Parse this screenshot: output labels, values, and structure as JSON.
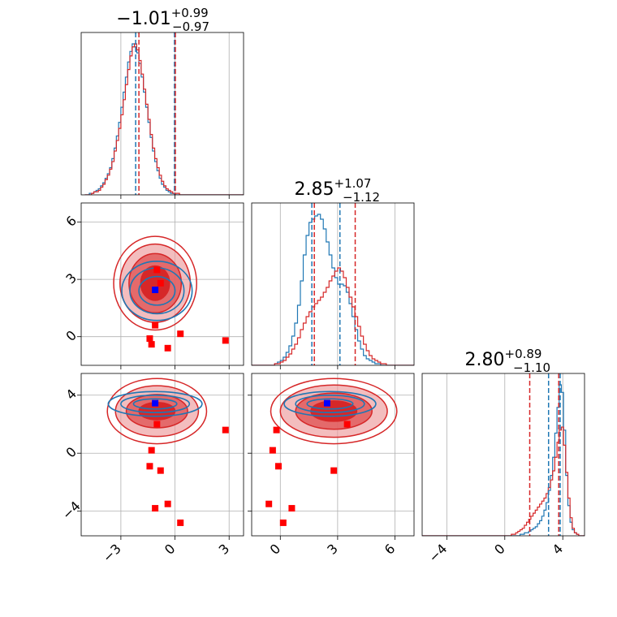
{
  "colors": {
    "red": "#d62728",
    "blue": "#1f77b4",
    "marker_red": "#ff0000",
    "marker_blue": "#0000ff",
    "grid": "#b0b0b0"
  },
  "chart_data": {
    "type": "corner",
    "parameters": 3,
    "grid": true,
    "series": [
      {
        "name": "",
        "color": "#1f77b4"
      },
      {
        "name": "",
        "color": "#d62728"
      }
    ],
    "titles": [
      {
        "main": "−1.01",
        "sup": "+0.99",
        "sub": "−0.97"
      },
      {
        "main": "2.85",
        "sup": "+1.07",
        "sub": "−1.12"
      },
      {
        "main": "2.80",
        "sup": "+0.89",
        "sub": "−1.10"
      }
    ],
    "ranges": [
      [
        -5.2,
        3.8
      ],
      [
        -1.5,
        7.0
      ],
      [
        -5.7,
        5.5
      ]
    ],
    "ticks": [
      {
        "values": [
          -3,
          0,
          3
        ],
        "labels": [
          "−3",
          "0",
          "3"
        ]
      },
      {
        "values": [
          0,
          3,
          6
        ],
        "labels": [
          "0",
          "3",
          "6"
        ]
      },
      {
        "values": [
          -4,
          0,
          4
        ],
        "labels": [
          "−4",
          "0",
          "4"
        ]
      }
    ],
    "quantiles": {
      "blue": [
        [
          -2.18,
          -0.03
        ],
        [
          1.65,
          3.12
        ],
        [
          3.02,
          3.82
        ]
      ],
      "red": [
        [
          -2.0,
          0.02
        ],
        [
          1.78,
          3.92
        ],
        [
          1.72,
          3.72
        ]
      ]
    },
    "histograms": [
      {
        "start": -5.0,
        "width": 0.125,
        "blue": [
          0,
          0,
          1,
          1,
          2,
          3,
          4,
          6,
          8,
          11,
          14,
          18,
          24,
          31,
          39,
          48,
          58,
          68,
          78,
          88,
          95,
          100,
          98,
          94,
          87,
          78,
          68,
          58,
          48,
          38,
          29,
          22,
          16,
          11,
          7,
          5,
          3,
          2,
          1,
          1,
          0,
          0,
          0,
          0,
          0,
          0,
          0,
          0,
          0,
          0,
          0,
          0,
          0,
          0,
          0,
          0,
          0,
          0,
          0,
          0,
          0,
          0,
          0,
          0,
          0,
          0,
          0,
          0,
          0,
          0,
          0,
          0
        ],
        "red": [
          0,
          0,
          0,
          1,
          2,
          2,
          3,
          5,
          7,
          10,
          13,
          17,
          22,
          29,
          36,
          44,
          53,
          63,
          73,
          83,
          92,
          98,
          100,
          96,
          89,
          80,
          70,
          60,
          50,
          40,
          31,
          24,
          18,
          13,
          9,
          6,
          4,
          3,
          2,
          1,
          1,
          1,
          0,
          0,
          0,
          0,
          0,
          0,
          0,
          0,
          0,
          0,
          0,
          0,
          0,
          0,
          0,
          0,
          0,
          0,
          0,
          0,
          0,
          0,
          0,
          0,
          0,
          0,
          0,
          0,
          0,
          0
        ]
      },
      {
        "start": -1.5,
        "width": 0.15,
        "blue": [
          0,
          0,
          0,
          0,
          0,
          0,
          0,
          0,
          1,
          2,
          3,
          5,
          8,
          12,
          18,
          26,
          37,
          52,
          68,
          80,
          88,
          90,
          92,
          93,
          90,
          84,
          76,
          68,
          60,
          54,
          50,
          50,
          49,
          45,
          38,
          30,
          22,
          15,
          10,
          6,
          4,
          3,
          2,
          1,
          1,
          0,
          0,
          0,
          0,
          0,
          0,
          0,
          0,
          0,
          0,
          0,
          0
        ],
        "red": [
          0,
          0,
          0,
          0,
          0,
          0,
          0,
          0,
          1,
          1,
          2,
          3,
          5,
          7,
          10,
          13,
          17,
          22,
          26,
          30,
          33,
          36,
          38,
          40,
          42,
          45,
          48,
          52,
          55,
          58,
          60,
          58,
          54,
          48,
          42,
          36,
          30,
          24,
          18,
          13,
          9,
          6,
          4,
          3,
          2,
          1,
          1,
          0,
          0,
          0,
          0,
          0,
          0,
          0,
          0,
          0,
          0
        ]
      },
      {
        "start": -5.7,
        "width": 0.15,
        "blue": [
          0,
          0,
          0,
          0,
          0,
          0,
          0,
          0,
          0,
          0,
          0,
          0,
          0,
          0,
          0,
          0,
          0,
          0,
          0,
          0,
          0,
          0,
          0,
          0,
          0,
          0,
          0,
          0,
          0,
          0,
          0,
          0,
          0,
          0,
          0,
          0,
          0,
          0,
          0,
          0,
          0,
          0,
          0,
          0,
          0,
          1,
          1,
          2,
          2,
          3,
          4,
          5,
          6,
          8,
          10,
          13,
          17,
          22,
          30,
          40,
          52,
          68,
          85,
          100,
          95,
          70,
          40,
          20,
          9,
          4,
          2,
          1,
          0,
          0,
          0
        ],
        "red": [
          0,
          0,
          0,
          0,
          0,
          0,
          0,
          0,
          0,
          0,
          0,
          0,
          0,
          0,
          0,
          0,
          0,
          0,
          0,
          0,
          0,
          0,
          0,
          0,
          0,
          0,
          0,
          0,
          0,
          0,
          0,
          0,
          0,
          0,
          0,
          0,
          0,
          0,
          0,
          0,
          0,
          1,
          1,
          2,
          3,
          4,
          5,
          7,
          9,
          11,
          13,
          15,
          17,
          19,
          21,
          23,
          25,
          28,
          32,
          37,
          43,
          52,
          62,
          70,
          72,
          60,
          42,
          25,
          12,
          5,
          2,
          1,
          0,
          0,
          0
        ]
      }
    ],
    "contours": [
      {
        "pair": [
          0,
          1
        ],
        "red": {
          "center": [
            -1.1,
            2.8
          ],
          "radii": [
            [
              0.8,
              0.9
            ],
            [
              1.45,
              1.55
            ],
            [
              1.95,
              2.05
            ],
            [
              2.3,
              2.45
            ]
          ],
          "fills": [
            "#d62728",
            "#e05c5d",
            "#ec9a9b"
          ],
          "fill_opacity": [
            1.0,
            0.85,
            0.65
          ]
        },
        "blue": {
          "center": [
            -1.0,
            2.4
          ],
          "radii": [
            [
              1.0,
              0.75
            ],
            [
              1.5,
              1.2
            ],
            [
              1.95,
              1.55
            ]
          ]
        }
      },
      {
        "pair": [
          0,
          2
        ],
        "red": {
          "center": [
            -1.0,
            2.9
          ],
          "radii": [
            [
              1.0,
              0.6
            ],
            [
              1.7,
              1.15
            ],
            [
              2.3,
              1.75
            ],
            [
              2.75,
              2.25
            ]
          ],
          "fills": [
            "#d62728",
            "#e05c5d",
            "#ec9a9b"
          ],
          "fill_opacity": [
            1.0,
            0.85,
            0.65
          ]
        },
        "blue": {
          "center": [
            -1.1,
            3.4
          ],
          "radii": [
            [
              1.2,
              0.35
            ],
            [
              1.9,
              0.6
            ],
            [
              2.6,
              0.85
            ]
          ]
        }
      },
      {
        "pair": [
          1,
          2
        ],
        "red": {
          "center": [
            2.8,
            2.9
          ],
          "radii": [
            [
              1.2,
              0.7
            ],
            [
              2.0,
              1.25
            ],
            [
              2.8,
              1.8
            ],
            [
              3.3,
              2.25
            ]
          ],
          "fills": [
            "#d62728",
            "#e05c5d",
            "#ec9a9b"
          ],
          "fill_opacity": [
            1.0,
            0.85,
            0.65
          ]
        },
        "blue": {
          "center": [
            2.6,
            3.4
          ],
          "radii": [
            [
              1.2,
              0.35
            ],
            [
              1.8,
              0.6
            ],
            [
              2.4,
              0.85
            ]
          ]
        }
      }
    ],
    "markers": {
      "red": [
        {
          "p0": -1.0,
          "p1": 3.5,
          "p2": 2.0
        },
        {
          "p0": -0.8,
          "p1": 2.8,
          "p2": -1.2
        },
        {
          "p0": -1.1,
          "p1": 0.6,
          "p2": -3.8
        },
        {
          "p0": -1.4,
          "p1": -0.1,
          "p2": -0.9
        },
        {
          "p0": -1.3,
          "p1": -0.4,
          "p2": 0.2
        },
        {
          "p0": -0.4,
          "p1": -0.6,
          "p2": -3.5
        },
        {
          "p0": 0.3,
          "p1": 0.15,
          "p2": -4.8
        },
        {
          "p0": 2.8,
          "p1": -0.2,
          "p2": 1.6
        }
      ],
      "blue": [
        {
          "p0": -1.1,
          "p1": 2.45,
          "p2": 3.45
        }
      ]
    }
  }
}
